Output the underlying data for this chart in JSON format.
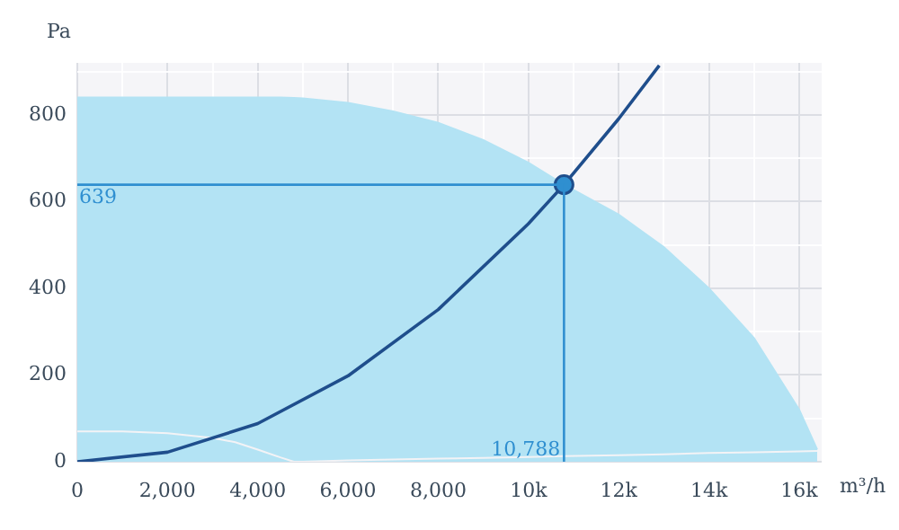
{
  "chart_data": {
    "type": "line",
    "xlabel": "m³/h",
    "ylabel": "Pa",
    "xlim": [
      0,
      16500
    ],
    "ylim": [
      0,
      920
    ],
    "xticks": [
      0,
      {
        "value": 1000,
        "label": null
      },
      {
        "value": 2000,
        "label": "2,000"
      },
      {
        "value": 3000,
        "label": null
      },
      {
        "value": 4000,
        "label": "4,000"
      },
      {
        "value": 5000,
        "label": null
      },
      {
        "value": 6000,
        "label": "6,000"
      },
      {
        "value": 7000,
        "label": null
      },
      {
        "value": 8000,
        "label": "8,000"
      },
      {
        "value": 9000,
        "label": null
      },
      {
        "value": 10000,
        "label": "10k"
      },
      {
        "value": 11000,
        "label": null
      },
      {
        "value": 12000,
        "label": "12k"
      },
      {
        "value": 13000,
        "label": null
      },
      {
        "value": 14000,
        "label": "14k"
      },
      {
        "value": 15000,
        "label": null
      },
      {
        "value": 16000,
        "label": "16k"
      }
    ],
    "yticks": [
      0,
      {
        "value": 100,
        "label": null
      },
      200,
      {
        "value": 300,
        "label": null
      },
      400,
      {
        "value": 500,
        "label": null
      },
      600,
      {
        "value": 700,
        "label": null
      },
      800,
      {
        "value": 900,
        "label": null
      }
    ],
    "grid": true,
    "series": [
      {
        "type": "area",
        "color": "#b3e3f4",
        "x": [
          0,
          1000,
          2000,
          3000,
          3500,
          4000,
          4500,
          4800,
          5000,
          6000,
          7000,
          8000,
          9000,
          10000,
          10788,
          12000,
          13000,
          14000,
          15000,
          16000,
          16400
        ],
        "values": [
          840,
          840,
          840,
          840,
          840,
          840,
          840,
          839,
          838,
          828,
          808,
          782,
          742,
          690,
          639,
          570,
          495,
          400,
          285,
          120,
          28
        ]
      },
      {
        "type": "area",
        "color": "#f3f3f6",
        "x": [
          0,
          1000,
          2000,
          3000,
          3500,
          4000,
          4500,
          4800,
          5000,
          6000,
          7000,
          8000,
          9000,
          10000,
          10788,
          12000,
          13000,
          14000,
          15000,
          16000,
          16400
        ],
        "values": [
          70,
          70,
          66,
          55,
          45,
          28,
          10,
          0,
          0,
          3,
          5,
          7,
          9,
          11,
          13,
          15,
          17,
          20,
          22,
          24,
          25
        ]
      },
      {
        "color": "#1f4e8c",
        "x": [
          0,
          2000,
          4000,
          6000,
          8000,
          10000,
          10788,
          12000,
          12900
        ],
        "values": [
          0,
          22,
          88,
          198,
          351,
          549,
          639,
          791,
          914
        ]
      },
      {
        "type": "scatter",
        "color": "#2f8fd0",
        "marker": "circle",
        "x": [
          10788
        ],
        "values": [
          639
        ]
      }
    ],
    "ref_lines": [
      {
        "axis": "y",
        "value": 639,
        "label": "639",
        "color": "#2f8fd0"
      },
      {
        "axis": "x",
        "value": 10788,
        "label": "10,788",
        "color": "#2f8fd0"
      }
    ]
  }
}
